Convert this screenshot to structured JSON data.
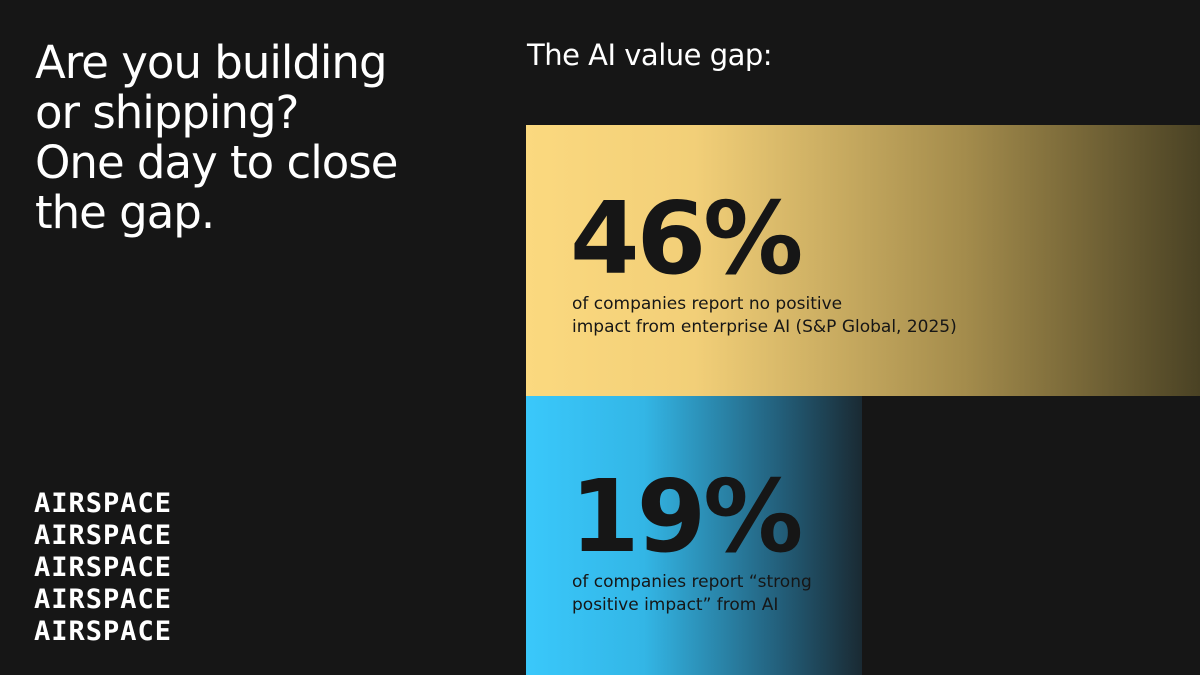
{
  "headline": {
    "lines": [
      "Are you building",
      "or shipping?",
      "One day to close",
      "the gap."
    ]
  },
  "logo": {
    "lines": [
      "AIRSPACE",
      "AIRSPACE",
      "AIRSPACE",
      "AIRSPACE",
      "AIRSPACE"
    ]
  },
  "panel": {
    "title": "The AI value gap:",
    "stats": [
      {
        "figure": "46%",
        "caption": [
          "of companies report no positive",
          "impact from enterprise AI (S&P Global, 2025)"
        ]
      },
      {
        "figure": "19%",
        "caption": [
          "of companies report “strong",
          "positive impact” from AI"
        ]
      }
    ]
  }
}
